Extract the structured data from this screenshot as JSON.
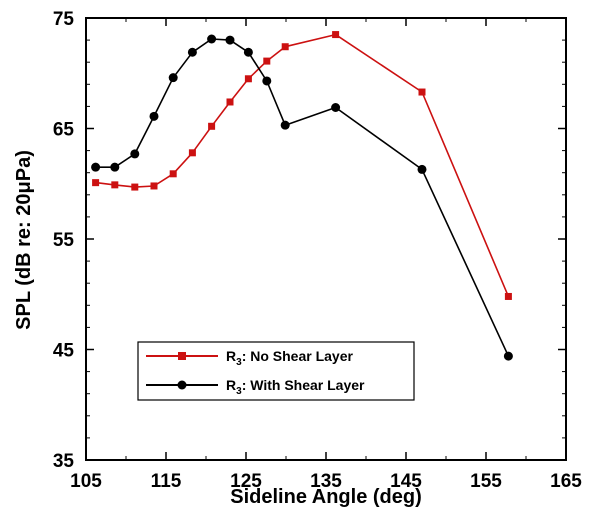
{
  "chart_data": {
    "type": "line",
    "xlabel": "Sideline Angle (deg)",
    "ylabel_main": "SPL (dB re: 20",
    "ylabel_mu": "μ",
    "ylabel_end": "Pa)",
    "xlim": [
      105,
      165
    ],
    "ylim": [
      35,
      75
    ],
    "xticks": [
      105,
      115,
      125,
      135,
      145,
      155,
      165
    ],
    "yticks": [
      35,
      45,
      55,
      65,
      75
    ],
    "grid": false,
    "legend_position": "lower-left",
    "series": [
      {
        "name_main": "R",
        "name_sub": "3",
        "name_rest": ": No Shear Layer",
        "color": "#cc1111",
        "marker": "square",
        "x": [
          106.2,
          108.6,
          111.1,
          113.5,
          115.9,
          118.3,
          120.7,
          123.0,
          125.3,
          127.6,
          129.9,
          136.2,
          147.0,
          157.8
        ],
        "y": [
          60.1,
          59.9,
          59.7,
          59.8,
          60.9,
          62.8,
          65.2,
          67.4,
          69.5,
          71.1,
          72.4,
          73.5,
          68.3,
          49.8
        ]
      },
      {
        "name_main": "R",
        "name_sub": "3",
        "name_rest": ": With Shear Layer",
        "color": "#000000",
        "marker": "circle",
        "x": [
          106.2,
          108.6,
          111.1,
          113.5,
          115.9,
          118.3,
          120.7,
          123.0,
          125.3,
          127.6,
          129.9,
          136.2,
          147.0,
          157.8
        ],
        "y": [
          61.5,
          61.5,
          62.7,
          66.1,
          69.6,
          71.9,
          73.1,
          73.0,
          71.9,
          69.3,
          65.3,
          66.9,
          61.3,
          44.4
        ]
      }
    ]
  }
}
